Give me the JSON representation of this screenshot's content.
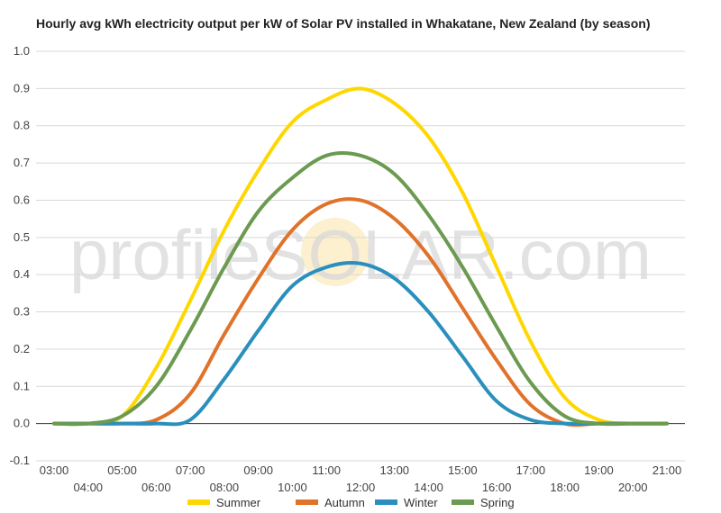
{
  "chart_data": {
    "type": "line",
    "title": "Hourly avg kWh electricity output per kW of Solar PV installed in Whakatane, New Zealand (by season)",
    "xlabel": "",
    "ylabel": "",
    "ylim": [
      -0.1,
      1.0
    ],
    "yticks": [
      -0.1,
      0.0,
      0.1,
      0.2,
      0.3,
      0.4,
      0.5,
      0.6,
      0.7,
      0.8,
      0.9,
      1.0
    ],
    "ytick_labels": [
      "-0.1",
      "0.0",
      "0.1",
      "0.2",
      "0.3",
      "0.4",
      "0.5",
      "0.6",
      "0.7",
      "0.8",
      "0.9",
      "1.0"
    ],
    "x": [
      "03:00",
      "04:00",
      "05:00",
      "06:00",
      "07:00",
      "08:00",
      "09:00",
      "10:00",
      "11:00",
      "12:00",
      "13:00",
      "14:00",
      "15:00",
      "16:00",
      "17:00",
      "18:00",
      "19:00",
      "20:00",
      "21:00"
    ],
    "grid": true,
    "legend_position": "bottom",
    "series": [
      {
        "name": "Summer",
        "color": "#FFD700",
        "values": [
          0.0,
          0.0,
          0.02,
          0.15,
          0.33,
          0.52,
          0.68,
          0.81,
          0.87,
          0.9,
          0.86,
          0.77,
          0.62,
          0.42,
          0.22,
          0.07,
          0.01,
          0.0,
          0.0
        ]
      },
      {
        "name": "Autumn",
        "color": "#E0722A",
        "values": [
          0.0,
          0.0,
          0.0,
          0.01,
          0.08,
          0.24,
          0.39,
          0.52,
          0.59,
          0.6,
          0.55,
          0.45,
          0.31,
          0.17,
          0.05,
          0.0,
          0.0,
          0.0,
          0.0
        ]
      },
      {
        "name": "Winter",
        "color": "#2A8FBD",
        "values": [
          0.0,
          0.0,
          0.0,
          0.0,
          0.01,
          0.12,
          0.25,
          0.37,
          0.42,
          0.43,
          0.39,
          0.3,
          0.18,
          0.06,
          0.01,
          0.0,
          0.0,
          0.0,
          0.0
        ]
      },
      {
        "name": "Spring",
        "color": "#6B9A50",
        "values": [
          0.0,
          0.0,
          0.02,
          0.1,
          0.25,
          0.42,
          0.57,
          0.66,
          0.72,
          0.72,
          0.67,
          0.56,
          0.42,
          0.26,
          0.11,
          0.02,
          0.0,
          0.0,
          0.0
        ]
      }
    ],
    "watermark": "profileSOLAR.com"
  }
}
